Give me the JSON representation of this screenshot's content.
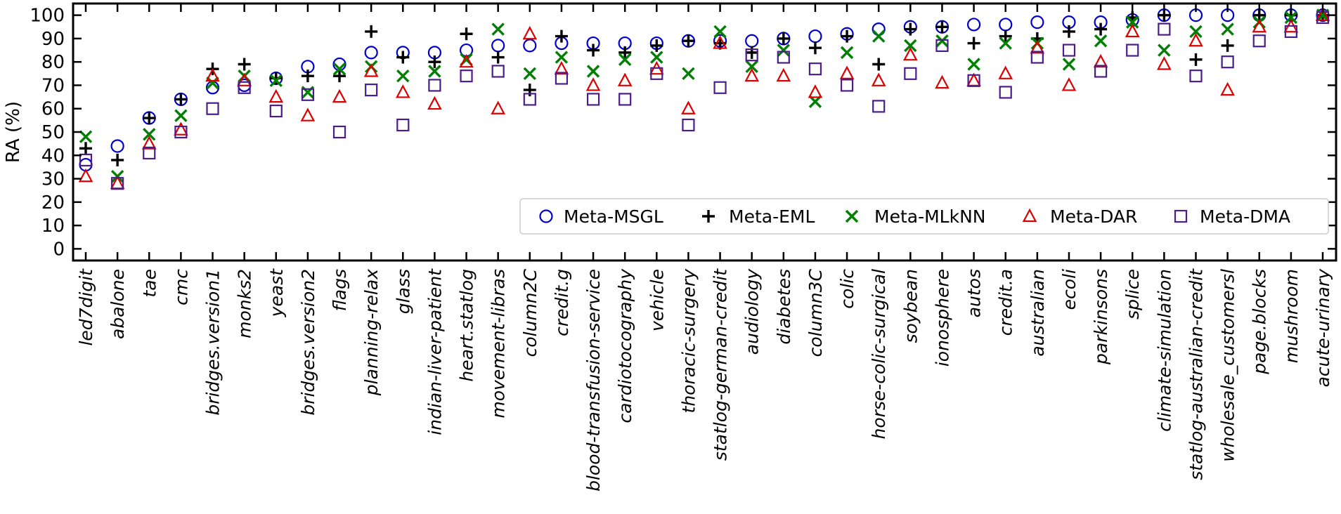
{
  "chart_data": {
    "type": "scatter",
    "title": "",
    "xlabel": "",
    "ylabel": "RA (%)",
    "ylim": [
      -5,
      105
    ],
    "yticks": [
      0,
      10,
      20,
      30,
      40,
      50,
      60,
      70,
      80,
      90,
      100
    ],
    "ytick_labels": [
      "0",
      "10",
      "20",
      "30",
      "40",
      "50",
      "60",
      "70",
      "80",
      "90",
      "100"
    ],
    "grid": false,
    "legend_position": "center-right",
    "categories": [
      "led7digit",
      "abalone",
      "tae",
      "cmc",
      "bridges.version1",
      "monks2",
      "yeast",
      "bridges.version2",
      "flags",
      "planning-relax",
      "glass",
      "indian-liver-patient",
      "heart.statlog",
      "movement-libras",
      "column2C",
      "credit.g",
      "blood-transfusion-service",
      "cardiotocography",
      "vehicle",
      "thoracic-surgery",
      "statlog-german-credit",
      "audiology",
      "diabetes",
      "column3C",
      "colic",
      "horse-colic-surgical",
      "soybean",
      "ionosphere",
      "autos",
      "credit.a",
      "australian",
      "ecoli",
      "parkinsons",
      "splice",
      "climate-simulation",
      "statlog-australian-credit",
      "wholesale_customersl",
      "page.blocks",
      "mushroom",
      "acute-urinary"
    ],
    "series": [
      {
        "name": "Meta-MSGL",
        "marker": "circle",
        "color": "#0000cc",
        "values": [
          36,
          44,
          56,
          64,
          69,
          70,
          73,
          78,
          79,
          84,
          84,
          84,
          85,
          87,
          87,
          88,
          88,
          88,
          88,
          89,
          89,
          89,
          90,
          91,
          92,
          94,
          95,
          95,
          96,
          96,
          97,
          97,
          97,
          98,
          100,
          100,
          100,
          100,
          100,
          100
        ]
      },
      {
        "name": "Meta-EML",
        "marker": "plus",
        "color": "#000000",
        "values": [
          43,
          38,
          56,
          64,
          77,
          79,
          73,
          74,
          74,
          93,
          82,
          80,
          92,
          82,
          68,
          91,
          85,
          84,
          87,
          89,
          88,
          84,
          90,
          86,
          91,
          79,
          94,
          95,
          88,
          91,
          90,
          93,
          94,
          99,
          100,
          81,
          87,
          100,
          100,
          100
        ]
      },
      {
        "name": "Meta-MLkNN",
        "marker": "x",
        "color": "#008000",
        "values": [
          48,
          31,
          49,
          57,
          71,
          74,
          72,
          67,
          77,
          78,
          74,
          76,
          81,
          94,
          75,
          82,
          76,
          81,
          82,
          75,
          93,
          78,
          85,
          63,
          84,
          91,
          87,
          89,
          79,
          88,
          88,
          79,
          89,
          97,
          85,
          93,
          94,
          97,
          99,
          100
        ]
      },
      {
        "name": "Meta-DAR",
        "marker": "triangle",
        "color": "#dd0000",
        "values": [
          31,
          28,
          45,
          51,
          74,
          72,
          65,
          57,
          65,
          76,
          67,
          62,
          80,
          60,
          92,
          77,
          70,
          72,
          77,
          60,
          88,
          74,
          74,
          67,
          75,
          72,
          83,
          71,
          72,
          75,
          86,
          70,
          80,
          93,
          79,
          89,
          68,
          95,
          95,
          100
        ]
      },
      {
        "name": "Meta-DMA",
        "marker": "square",
        "color": "#4b1d8a",
        "values": [
          38,
          28,
          41,
          50,
          60,
          69,
          59,
          66,
          50,
          68,
          53,
          70,
          74,
          76,
          64,
          73,
          64,
          64,
          75,
          53,
          69,
          83,
          82,
          77,
          70,
          61,
          75,
          87,
          72,
          67,
          82,
          85,
          76,
          85,
          94,
          74,
          80,
          89,
          93,
          99
        ]
      }
    ]
  }
}
